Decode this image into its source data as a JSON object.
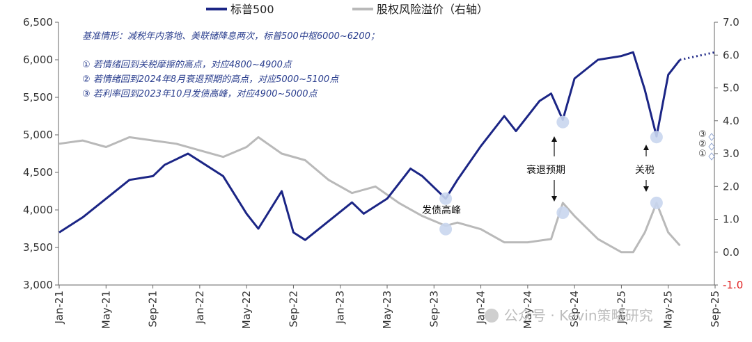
{
  "chart_data": {
    "type": "line",
    "legend": {
      "placement": "top",
      "items": [
        {
          "label": "标普500",
          "color": "#1b2585"
        },
        {
          "label": "股权风险溢价（右轴）",
          "color": "#b9b9b9"
        }
      ]
    },
    "y_left": {
      "min": 3000,
      "max": 6500,
      "ticks": [
        "3,000",
        "3,500",
        "4,000",
        "4,500",
        "5,000",
        "5,500",
        "6,000",
        "6,500"
      ]
    },
    "y_right": {
      "min": -1.0,
      "max": 7.0,
      "ticks": [
        "-1.0",
        "0.0",
        "1.0",
        "2.0",
        "3.0",
        "4.0",
        "5.0",
        "6.0",
        "7.0"
      ]
    },
    "x_ticks": [
      "Jan-21",
      "May-21",
      "Sep-21",
      "Jan-22",
      "May-22",
      "Sep-22",
      "Jan-23",
      "May-23",
      "Sep-23",
      "Jan-24",
      "May-24",
      "Sep-24",
      "Jan-25",
      "May-25",
      "Sep-25"
    ],
    "x_range": [
      "2021-01",
      "2025-09"
    ],
    "series": [
      {
        "name": "标普500",
        "axis": "left",
        "color": "#1b2585",
        "points": [
          [
            "2021-01",
            3700
          ],
          [
            "2021-03",
            3900
          ],
          [
            "2021-05",
            4150
          ],
          [
            "2021-07",
            4400
          ],
          [
            "2021-09",
            4450
          ],
          [
            "2021-10",
            4600
          ],
          [
            "2021-12",
            4750
          ],
          [
            "2022-01",
            4650
          ],
          [
            "2022-03",
            4450
          ],
          [
            "2022-05",
            3950
          ],
          [
            "2022-06",
            3750
          ],
          [
            "2022-08",
            4250
          ],
          [
            "2022-09",
            3700
          ],
          [
            "2022-10",
            3600
          ],
          [
            "2022-12",
            3850
          ],
          [
            "2023-02",
            4100
          ],
          [
            "2023-03",
            3950
          ],
          [
            "2023-05",
            4150
          ],
          [
            "2023-07",
            4550
          ],
          [
            "2023-08",
            4450
          ],
          [
            "2023-10",
            4150
          ],
          [
            "2023-11",
            4400
          ],
          [
            "2024-01",
            4850
          ],
          [
            "2024-03",
            5250
          ],
          [
            "2024-04",
            5050
          ],
          [
            "2024-06",
            5450
          ],
          [
            "2024-07",
            5550
          ],
          [
            "2024-08",
            5200
          ],
          [
            "2024-09",
            5750
          ],
          [
            "2024-11",
            6000
          ],
          [
            "2025-01",
            6050
          ],
          [
            "2025-02",
            6100
          ],
          [
            "2025-03",
            5600
          ],
          [
            "2025-04",
            4980
          ],
          [
            "2025-05",
            5800
          ],
          [
            "2025-06",
            6000
          ]
        ]
      },
      {
        "name": "标普500 中枢（虚线）",
        "axis": "left",
        "color": "#1b2585",
        "dashed": true,
        "points": [
          [
            "2025-06",
            6000
          ],
          [
            "2025-09",
            6100
          ]
        ]
      },
      {
        "name": "股权风险溢价（右轴）",
        "axis": "right",
        "color": "#b9b9b9",
        "points": [
          [
            "2021-01",
            3.3
          ],
          [
            "2021-03",
            3.4
          ],
          [
            "2021-05",
            3.2
          ],
          [
            "2021-07",
            3.5
          ],
          [
            "2021-09",
            3.4
          ],
          [
            "2021-11",
            3.3
          ],
          [
            "2022-01",
            3.1
          ],
          [
            "2022-03",
            2.9
          ],
          [
            "2022-05",
            3.2
          ],
          [
            "2022-06",
            3.5
          ],
          [
            "2022-08",
            3.0
          ],
          [
            "2022-10",
            2.8
          ],
          [
            "2022-12",
            2.2
          ],
          [
            "2023-02",
            1.8
          ],
          [
            "2023-04",
            2.0
          ],
          [
            "2023-06",
            1.5
          ],
          [
            "2023-08",
            1.1
          ],
          [
            "2023-10",
            0.8
          ],
          [
            "2023-11",
            0.9
          ],
          [
            "2024-01",
            0.7
          ],
          [
            "2024-03",
            0.3
          ],
          [
            "2024-05",
            0.3
          ],
          [
            "2024-07",
            0.4
          ],
          [
            "2024-08",
            1.5
          ],
          [
            "2024-09",
            1.1
          ],
          [
            "2024-11",
            0.4
          ],
          [
            "2025-01",
            0.0
          ],
          [
            "2025-02",
            0.0
          ],
          [
            "2025-03",
            0.6
          ],
          [
            "2025-04",
            1.5
          ],
          [
            "2025-05",
            0.6
          ],
          [
            "2025-06",
            0.2
          ]
        ]
      }
    ],
    "markers": [
      {
        "date": "2023-10",
        "value": 4150,
        "axis": "left",
        "color": "#c9d6ee"
      },
      {
        "date": "2023-10",
        "value": 0.7,
        "axis": "right",
        "color": "#c9d6ee"
      },
      {
        "date": "2024-08",
        "value": 5170,
        "axis": "left",
        "color": "#c9d6ee"
      },
      {
        "date": "2024-08",
        "value": 1.2,
        "axis": "right",
        "color": "#c9d6ee"
      },
      {
        "date": "2025-04",
        "value": 4970,
        "axis": "left",
        "color": "#c9d6ee"
      },
      {
        "date": "2025-04",
        "value": 1.5,
        "axis": "right",
        "color": "#c9d6ee"
      }
    ],
    "annotations": {
      "headline": "基准情形：减税年内落地、美联储降息两次，标普500中枢6000~6200；",
      "scenarios": [
        "① 若情绪回到关税摩擦的高点，对应4800~4900点",
        "② 若情绪回到2024年8月衰退预期的高点，对应5000~5100点",
        "③ 若利率回到2023年10月发债高峰，对应4900~5000点"
      ],
      "callouts": [
        "发债高峰",
        "衰退预期",
        "关税"
      ],
      "right_marks": [
        "③",
        "②",
        "①"
      ]
    },
    "watermark": "公众号 · Kevin策略研究"
  }
}
